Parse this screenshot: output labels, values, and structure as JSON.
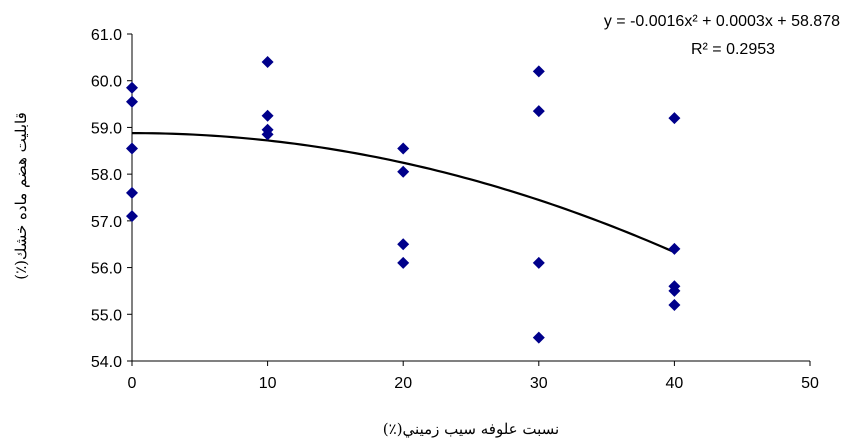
{
  "chart_data": {
    "type": "scatter",
    "xlabel": "نسبت علوفه سيب زميني(٪)",
    "ylabel": "قابليت هضم ماده خشك(٪)",
    "xlim": [
      0,
      50
    ],
    "ylim": [
      54.0,
      61.0
    ],
    "x_ticks": [
      "0",
      "10",
      "20",
      "30",
      "40",
      "50"
    ],
    "y_ticks": [
      "54.0",
      "55.0",
      "56.0",
      "57.0",
      "58.0",
      "59.0",
      "60.0",
      "61.0"
    ],
    "grid": false,
    "marker": "diamond",
    "marker_color": "#00008b",
    "trendline_color": "#000000",
    "points": [
      {
        "x": 0,
        "y": 59.85
      },
      {
        "x": 0,
        "y": 59.55
      },
      {
        "x": 0,
        "y": 58.55
      },
      {
        "x": 0,
        "y": 57.6
      },
      {
        "x": 0,
        "y": 57.1
      },
      {
        "x": 10,
        "y": 60.4
      },
      {
        "x": 10,
        "y": 59.25
      },
      {
        "x": 10,
        "y": 58.95
      },
      {
        "x": 10,
        "y": 58.85
      },
      {
        "x": 20,
        "y": 58.55
      },
      {
        "x": 20,
        "y": 58.05
      },
      {
        "x": 20,
        "y": 56.5
      },
      {
        "x": 20,
        "y": 56.1
      },
      {
        "x": 30,
        "y": 60.2
      },
      {
        "x": 30,
        "y": 59.35
      },
      {
        "x": 30,
        "y": 56.1
      },
      {
        "x": 30,
        "y": 54.5
      },
      {
        "x": 40,
        "y": 59.2
      },
      {
        "x": 40,
        "y": 56.4
      },
      {
        "x": 40,
        "y": 55.6
      },
      {
        "x": 40,
        "y": 55.5
      },
      {
        "x": 40,
        "y": 55.2
      }
    ],
    "trendline": {
      "type": "polynomial",
      "coefficients": [
        -0.0016,
        0.0003,
        58.878
      ],
      "x_range": [
        0,
        40
      ]
    },
    "equation": "y = -0.0016x² + 0.0003x + 58.878",
    "r_squared": "R² = 0.2953"
  }
}
